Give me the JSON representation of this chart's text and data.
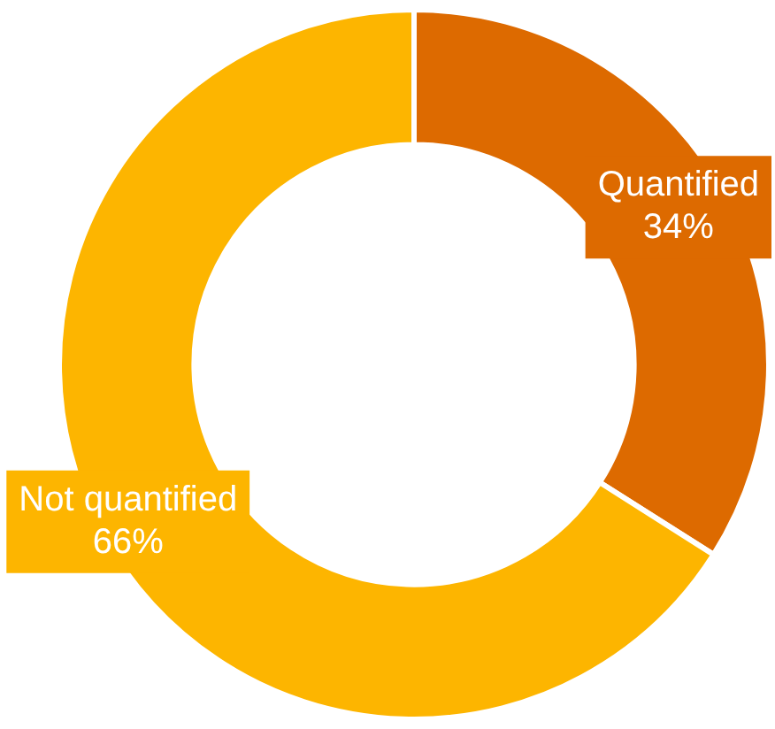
{
  "chart_data": {
    "type": "donut",
    "categories": [
      "Quantified",
      "Not quantified"
    ],
    "values": [
      34,
      66
    ],
    "colors": [
      "#dd6a00",
      "#fdb500"
    ],
    "value_labels": [
      "34%",
      "66%"
    ],
    "legend": false
  }
}
